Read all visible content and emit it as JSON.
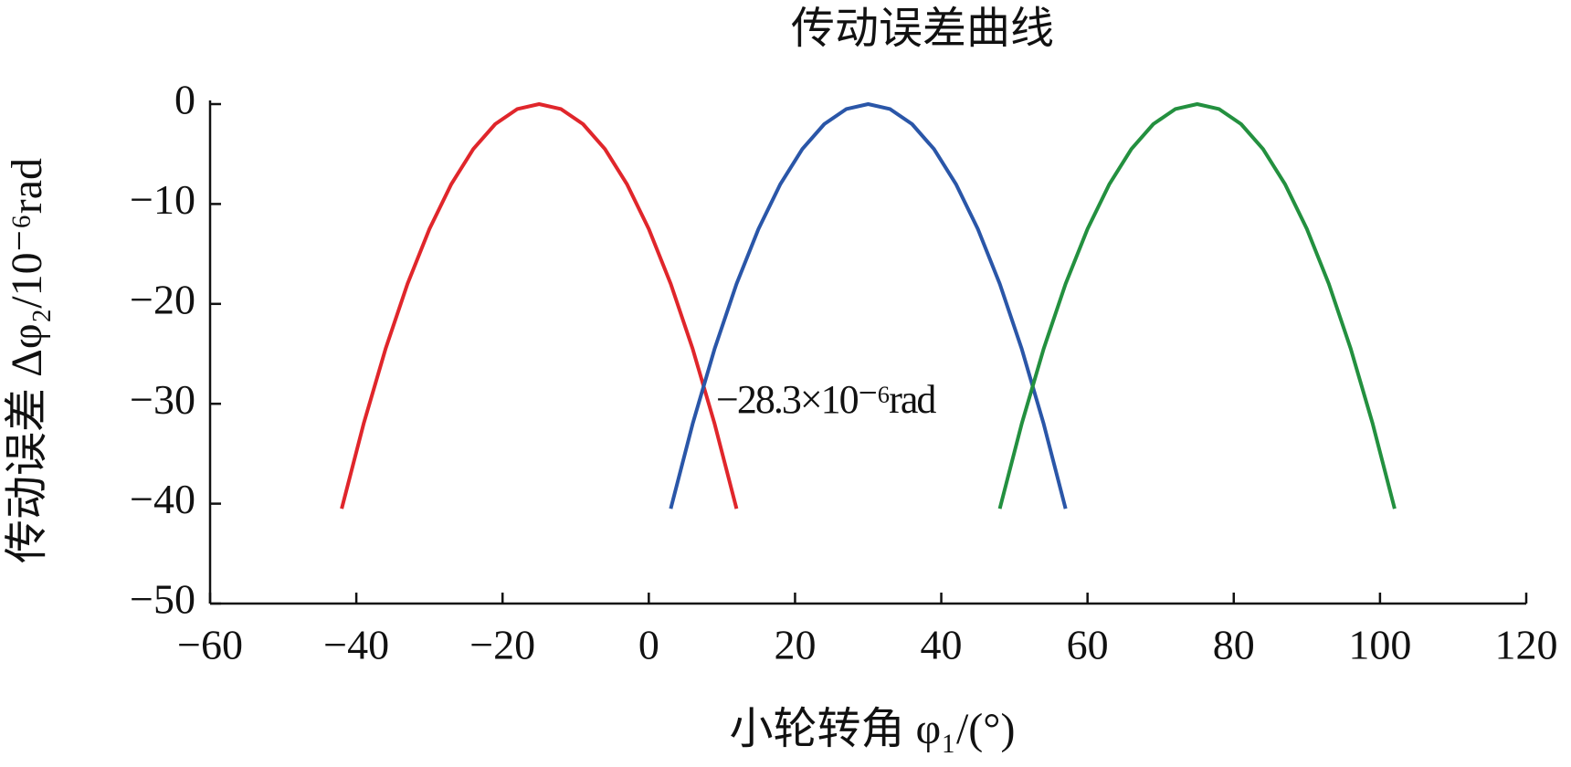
{
  "chart_data": {
    "type": "line",
    "title": "传动误差曲线",
    "x_label": "小轮转角 φ₁/(°)",
    "y_label": "传动误差 Δφ₂/10⁻⁶rad",
    "annotation": "−28.3×10⁻⁶rad",
    "series": [
      {
        "color": "#e0262b",
        "x": [
          -42,
          -39,
          -36,
          -33,
          -30,
          -27,
          -24,
          -21,
          -18,
          -15,
          -12,
          -9,
          -6,
          -3,
          0,
          3,
          6,
          9,
          12
        ],
        "values": [
          -40.5,
          -32,
          -24.5,
          -18,
          -12.5,
          -8,
          -4.5,
          -2,
          -0.5,
          0,
          -0.5,
          -2,
          -4.5,
          -8,
          -12.5,
          -18,
          -24.5,
          -32,
          -40.5
        ]
      },
      {
        "color": "#2a56a8",
        "x": [
          3,
          6,
          9,
          12,
          15,
          18,
          21,
          24,
          27,
          30,
          33,
          36,
          39,
          42,
          45,
          48,
          51,
          54,
          57
        ],
        "values": [
          -40.5,
          -32,
          -24.5,
          -18,
          -12.5,
          -8,
          -4.5,
          -2,
          -0.5,
          0,
          -0.5,
          -2,
          -4.5,
          -8,
          -12.5,
          -18,
          -24.5,
          -32,
          -40.5
        ]
      },
      {
        "color": "#23903f",
        "x": [
          48,
          51,
          54,
          57,
          60,
          63,
          66,
          69,
          72,
          75,
          78,
          81,
          84,
          87,
          90,
          93,
          96,
          99,
          102
        ],
        "values": [
          -40.5,
          -32,
          -24.5,
          -18,
          -12.5,
          -8,
          -4.5,
          -2,
          -0.5,
          0,
          -0.5,
          -2,
          -4.5,
          -8,
          -12.5,
          -18,
          -24.5,
          -32,
          -40.5
        ]
      }
    ],
    "xlim": [
      -60,
      120
    ],
    "xticks": [
      {
        "value": -60,
        "label": "−60"
      },
      {
        "value": -40,
        "label": "−40"
      },
      {
        "value": -20,
        "label": "−20"
      },
      0,
      20,
      40,
      60,
      80,
      100,
      120
    ],
    "ylim": [
      -50,
      0
    ],
    "yticks": [
      {
        "value": -50,
        "label": "−50"
      },
      {
        "value": -40,
        "label": "−40"
      },
      {
        "value": -30,
        "label": "−30"
      },
      {
        "value": -20,
        "label": "−20"
      },
      {
        "value": -10,
        "label": "−10"
      },
      0
    ],
    "grid": false
  }
}
